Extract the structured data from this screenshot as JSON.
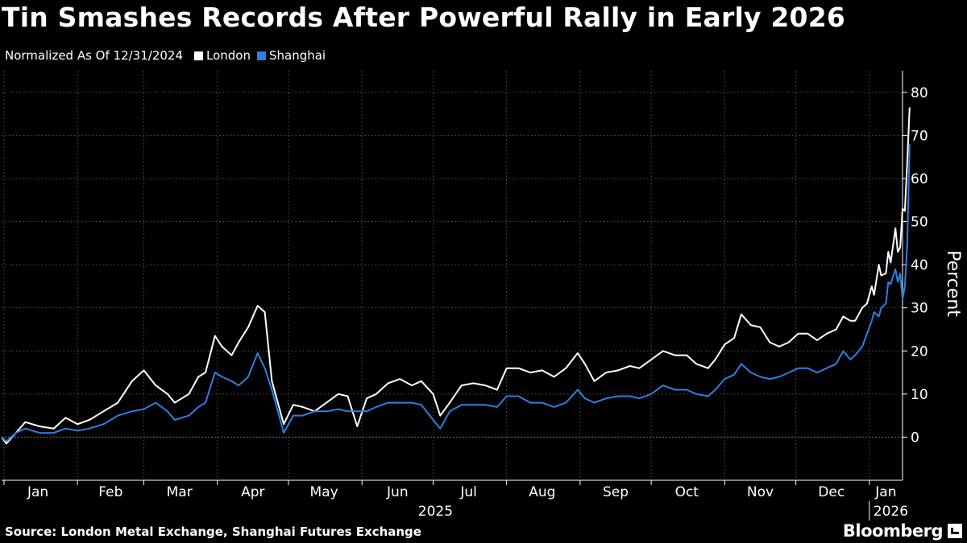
{
  "title": "Tin Smashes Records After Powerful Rally in Early 2026",
  "subtitle": "Normalized As Of 12/31/2024",
  "legend": [
    {
      "name": "London",
      "color": "#ffffff"
    },
    {
      "name": "Shanghai",
      "color": "#2f7fe0"
    }
  ],
  "source": "Source: London Metal Exchange, Shanghai Futures Exchange",
  "brand": "Bloomberg",
  "chart_data": {
    "type": "line",
    "ylabel": "Percent",
    "ylim": [
      -10,
      85
    ],
    "yticks": [
      0,
      10,
      20,
      30,
      40,
      50,
      60,
      70,
      80
    ],
    "grid": true,
    "legend_position": "top-left",
    "xlim": [
      "2024-12-31",
      "2026-01-15"
    ],
    "x_month_ticks": [
      "Jan",
      "Feb",
      "Mar",
      "Apr",
      "May",
      "Jun",
      "Jul",
      "Aug",
      "Sep",
      "Oct",
      "Nov",
      "Dec",
      "Jan"
    ],
    "x_year_labels": [
      "2025",
      "2026"
    ],
    "series": [
      {
        "name": "London",
        "color": "#ffffff",
        "points": [
          [
            "2024-12-31",
            0
          ],
          [
            "2025-01-02",
            -1.5
          ],
          [
            "2025-01-06",
            1
          ],
          [
            "2025-01-10",
            3.5
          ],
          [
            "2025-01-16",
            2.5
          ],
          [
            "2025-01-22",
            2
          ],
          [
            "2025-01-27",
            4.5
          ],
          [
            "2025-02-01",
            3
          ],
          [
            "2025-02-06",
            4
          ],
          [
            "2025-02-12",
            6
          ],
          [
            "2025-02-18",
            8
          ],
          [
            "2025-02-24",
            13
          ],
          [
            "2025-03-01",
            15.5
          ],
          [
            "2025-03-06",
            12
          ],
          [
            "2025-03-11",
            10
          ],
          [
            "2025-03-14",
            8
          ],
          [
            "2025-03-17",
            9
          ],
          [
            "2025-03-20",
            10
          ],
          [
            "2025-03-24",
            14
          ],
          [
            "2025-03-27",
            15
          ],
          [
            "2025-03-31",
            23.5
          ],
          [
            "2025-04-03",
            21
          ],
          [
            "2025-04-07",
            19
          ],
          [
            "2025-04-10",
            22
          ],
          [
            "2025-04-14",
            25.5
          ],
          [
            "2025-04-18",
            30.5
          ],
          [
            "2025-04-21",
            29
          ],
          [
            "2025-04-24",
            13
          ],
          [
            "2025-04-29",
            3
          ],
          [
            "2025-05-03",
            7.5
          ],
          [
            "2025-05-07",
            7
          ],
          [
            "2025-05-12",
            6
          ],
          [
            "2025-05-17",
            8
          ],
          [
            "2025-05-22",
            10
          ],
          [
            "2025-05-26",
            9.5
          ],
          [
            "2025-05-30",
            2.5
          ],
          [
            "2025-06-03",
            9
          ],
          [
            "2025-06-07",
            10
          ],
          [
            "2025-06-12",
            12.5
          ],
          [
            "2025-06-17",
            13.5
          ],
          [
            "2025-06-22",
            12
          ],
          [
            "2025-06-26",
            13
          ],
          [
            "2025-07-01",
            10
          ],
          [
            "2025-07-04",
            5
          ],
          [
            "2025-07-08",
            8
          ],
          [
            "2025-07-13",
            12
          ],
          [
            "2025-07-18",
            12.5
          ],
          [
            "2025-07-23",
            12
          ],
          [
            "2025-07-28",
            11
          ],
          [
            "2025-08-01",
            16
          ],
          [
            "2025-08-06",
            16
          ],
          [
            "2025-08-11",
            15
          ],
          [
            "2025-08-16",
            15.5
          ],
          [
            "2025-08-21",
            14
          ],
          [
            "2025-08-26",
            16
          ],
          [
            "2025-08-31",
            19.5
          ],
          [
            "2025-09-03",
            17
          ],
          [
            "2025-09-07",
            13
          ],
          [
            "2025-09-12",
            15
          ],
          [
            "2025-09-17",
            15.5
          ],
          [
            "2025-09-22",
            16.5
          ],
          [
            "2025-09-26",
            16
          ],
          [
            "2025-10-01",
            18
          ],
          [
            "2025-10-06",
            20
          ],
          [
            "2025-10-11",
            19
          ],
          [
            "2025-10-16",
            19
          ],
          [
            "2025-10-20",
            17
          ],
          [
            "2025-10-25",
            16
          ],
          [
            "2025-10-28",
            18
          ],
          [
            "2025-11-01",
            21.5
          ],
          [
            "2025-11-05",
            23
          ],
          [
            "2025-11-08",
            28.5
          ],
          [
            "2025-11-12",
            26
          ],
          [
            "2025-11-16",
            25.5
          ],
          [
            "2025-11-20",
            22
          ],
          [
            "2025-11-24",
            21
          ],
          [
            "2025-11-28",
            22
          ],
          [
            "2025-12-02",
            24
          ],
          [
            "2025-12-06",
            24
          ],
          [
            "2025-12-10",
            22.5
          ],
          [
            "2025-12-14",
            24
          ],
          [
            "2025-12-18",
            25
          ],
          [
            "2025-12-21",
            28
          ],
          [
            "2025-12-24",
            27
          ],
          [
            "2025-12-26",
            27
          ],
          [
            "2025-12-29",
            30
          ],
          [
            "2025-12-31",
            31
          ],
          [
            "2026-01-02",
            35
          ],
          [
            "2026-01-03",
            33
          ],
          [
            "2026-01-05",
            40
          ],
          [
            "2026-01-06",
            37.5
          ],
          [
            "2026-01-08",
            38
          ],
          [
            "2026-01-09",
            43
          ],
          [
            "2026-01-10",
            40.5
          ],
          [
            "2026-01-12",
            48.5
          ],
          [
            "2026-01-13",
            43
          ],
          [
            "2026-01-14",
            44
          ],
          [
            "2026-01-15",
            53
          ],
          [
            "2026-01-16",
            52.5
          ],
          [
            "2026-01-17",
            64
          ],
          [
            "2026-01-18",
            76.5
          ]
        ]
      },
      {
        "name": "Shanghai",
        "color": "#2f7fe0",
        "points": [
          [
            "2024-12-31",
            0
          ],
          [
            "2025-01-02",
            -1
          ],
          [
            "2025-01-06",
            1
          ],
          [
            "2025-01-10",
            2
          ],
          [
            "2025-01-16",
            1
          ],
          [
            "2025-01-22",
            1
          ],
          [
            "2025-01-27",
            2
          ],
          [
            "2025-02-01",
            1.5
          ],
          [
            "2025-02-06",
            2
          ],
          [
            "2025-02-12",
            3
          ],
          [
            "2025-02-18",
            5
          ],
          [
            "2025-02-24",
            6
          ],
          [
            "2025-03-01",
            6.5
          ],
          [
            "2025-03-06",
            8
          ],
          [
            "2025-03-11",
            6
          ],
          [
            "2025-03-14",
            4
          ],
          [
            "2025-03-17",
            4.5
          ],
          [
            "2025-03-20",
            5
          ],
          [
            "2025-03-24",
            7
          ],
          [
            "2025-03-27",
            8
          ],
          [
            "2025-03-31",
            15
          ],
          [
            "2025-04-03",
            14
          ],
          [
            "2025-04-07",
            13
          ],
          [
            "2025-04-10",
            12
          ],
          [
            "2025-04-14",
            14
          ],
          [
            "2025-04-18",
            19.5
          ],
          [
            "2025-04-21",
            16
          ],
          [
            "2025-04-24",
            11
          ],
          [
            "2025-04-29",
            1
          ],
          [
            "2025-05-03",
            5
          ],
          [
            "2025-05-07",
            5
          ],
          [
            "2025-05-12",
            6
          ],
          [
            "2025-05-17",
            6
          ],
          [
            "2025-05-22",
            6.5
          ],
          [
            "2025-05-26",
            6
          ],
          [
            "2025-05-30",
            6
          ],
          [
            "2025-06-03",
            6
          ],
          [
            "2025-06-07",
            7
          ],
          [
            "2025-06-12",
            8
          ],
          [
            "2025-06-17",
            8
          ],
          [
            "2025-06-22",
            8
          ],
          [
            "2025-06-26",
            7.5
          ],
          [
            "2025-07-01",
            4
          ],
          [
            "2025-07-04",
            2
          ],
          [
            "2025-07-08",
            6
          ],
          [
            "2025-07-13",
            7.5
          ],
          [
            "2025-07-18",
            7.5
          ],
          [
            "2025-07-23",
            7.5
          ],
          [
            "2025-07-28",
            7
          ],
          [
            "2025-08-01",
            9.5
          ],
          [
            "2025-08-06",
            9.5
          ],
          [
            "2025-08-11",
            8
          ],
          [
            "2025-08-16",
            8
          ],
          [
            "2025-08-21",
            7
          ],
          [
            "2025-08-26",
            8
          ],
          [
            "2025-08-31",
            11
          ],
          [
            "2025-09-03",
            9
          ],
          [
            "2025-09-07",
            8
          ],
          [
            "2025-09-12",
            9
          ],
          [
            "2025-09-17",
            9.5
          ],
          [
            "2025-09-22",
            9.5
          ],
          [
            "2025-09-26",
            9
          ],
          [
            "2025-10-01",
            10
          ],
          [
            "2025-10-06",
            12
          ],
          [
            "2025-10-11",
            11
          ],
          [
            "2025-10-16",
            11
          ],
          [
            "2025-10-20",
            10
          ],
          [
            "2025-10-25",
            9.5
          ],
          [
            "2025-10-28",
            11
          ],
          [
            "2025-11-01",
            13.5
          ],
          [
            "2025-11-05",
            14.5
          ],
          [
            "2025-11-08",
            17
          ],
          [
            "2025-11-12",
            15
          ],
          [
            "2025-11-16",
            14
          ],
          [
            "2025-11-20",
            13.5
          ],
          [
            "2025-11-24",
            14
          ],
          [
            "2025-11-28",
            15
          ],
          [
            "2025-12-02",
            16
          ],
          [
            "2025-12-06",
            16
          ],
          [
            "2025-12-10",
            15
          ],
          [
            "2025-12-14",
            16
          ],
          [
            "2025-12-18",
            17
          ],
          [
            "2025-12-21",
            20
          ],
          [
            "2025-12-24",
            18
          ],
          [
            "2025-12-26",
            19
          ],
          [
            "2025-12-29",
            21
          ],
          [
            "2025-12-31",
            24
          ],
          [
            "2026-01-02",
            27
          ],
          [
            "2026-01-03",
            29
          ],
          [
            "2026-01-05",
            28
          ],
          [
            "2026-01-06",
            30
          ],
          [
            "2026-01-08",
            31
          ],
          [
            "2026-01-09",
            36
          ],
          [
            "2026-01-10",
            35.5
          ],
          [
            "2026-01-12",
            39
          ],
          [
            "2026-01-13",
            36
          ],
          [
            "2026-01-14",
            38
          ],
          [
            "2026-01-15",
            32
          ],
          [
            "2026-01-16",
            35
          ],
          [
            "2026-01-17",
            45
          ],
          [
            "2026-01-18",
            68
          ]
        ]
      }
    ]
  }
}
